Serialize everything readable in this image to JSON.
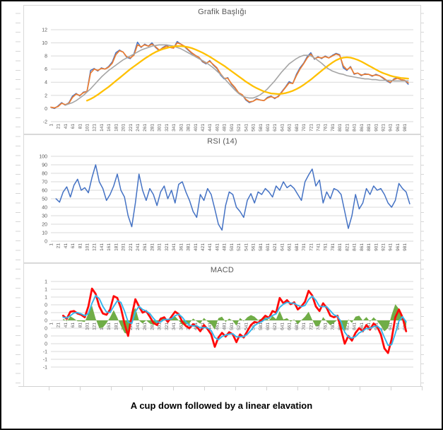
{
  "caption": "A cup down followed by a linear elavation",
  "colors": {
    "price_blue": "#4472C4",
    "price_orange": "#ED7D31",
    "ma_gray": "#A5A5A5",
    "ma_yellow": "#FFC000",
    "macd_red": "#FF0A0A",
    "signal_blue": "#35B5EC",
    "hist_green": "#70AD47",
    "grid": "#D9D9D9",
    "axis_text": "#595959",
    "frame_border": "#0A0A0A"
  },
  "x_axis": {
    "ticks": [
      1,
      21,
      41,
      61,
      81,
      101,
      121,
      141,
      161,
      181,
      201,
      221,
      241,
      261,
      281,
      301,
      321,
      341,
      361,
      381,
      401,
      421,
      441,
      461,
      481,
      501,
      521,
      541,
      561,
      581,
      601,
      621,
      641,
      661,
      681,
      701,
      721,
      741,
      761,
      781,
      801,
      821,
      841,
      861,
      881,
      901,
      921,
      941,
      961,
      981
    ]
  },
  "chart_data": [
    {
      "type": "line",
      "title": "Grafik Başlığı",
      "ylim": [
        -2,
        12
      ],
      "ytick_labels": [
        "12",
        "10",
        "8",
        "6",
        "4",
        "2",
        "0",
        "-2"
      ],
      "grid": true,
      "legend": "none",
      "series": [
        {
          "name": "price",
          "color": "price_blue",
          "x_start": 1,
          "x_step": 10,
          "values": [
            0.2,
            0.0,
            0.4,
            0.9,
            0.5,
            0.9,
            1.9,
            2.3,
            1.9,
            2.5,
            2.6,
            5.8,
            6.1,
            5.7,
            6.2,
            6.0,
            6.4,
            7.1,
            8.5,
            8.9,
            8.6,
            7.8,
            7.6,
            8.3,
            10.1,
            9.3,
            9.8,
            9.5,
            10.0,
            9.3,
            8.8,
            9.3,
            9.6,
            9.3,
            9.2,
            10.2,
            9.8,
            9.4,
            8.9,
            8.4,
            8.1,
            7.8,
            7.1,
            6.8,
            7.3,
            6.6,
            6.1,
            5.1,
            4.5,
            4.7,
            3.7,
            3.1,
            2.3,
            2.1,
            1.3,
            0.9,
            1.1,
            1.5,
            1.3,
            1.2,
            1.7,
            1.9,
            1.5,
            1.9,
            2.6,
            3.3,
            4.1,
            3.8,
            5.2,
            6.2,
            6.9,
            7.9,
            8.5,
            7.5,
            7.9,
            7.6,
            8.0,
            7.7,
            8.1,
            8.4,
            8.2,
            6.2,
            5.8,
            6.4,
            5.2,
            5.4,
            5.0,
            5.3,
            5.2,
            4.9,
            5.2,
            5.0,
            4.6,
            4.2,
            3.9,
            4.5,
            4.7,
            4.4,
            4.3,
            3.7
          ]
        },
        {
          "name": "price-smooth",
          "color": "price_orange",
          "x_start": 1,
          "x_step": 10,
          "values": [
            0.2,
            0.1,
            0.3,
            0.8,
            0.6,
            0.8,
            1.7,
            2.2,
            2.0,
            2.4,
            2.6,
            5.4,
            6.0,
            5.8,
            6.1,
            6.0,
            6.3,
            6.9,
            8.2,
            8.8,
            8.6,
            7.9,
            7.7,
            8.1,
            9.7,
            9.4,
            9.7,
            9.5,
            9.8,
            9.4,
            8.9,
            9.2,
            9.5,
            9.3,
            9.2,
            10.0,
            9.8,
            9.5,
            9.0,
            8.5,
            8.1,
            7.8,
            7.2,
            6.9,
            7.2,
            6.7,
            6.2,
            5.3,
            4.6,
            4.6,
            3.8,
            3.2,
            2.4,
            2.1,
            1.4,
            1.0,
            1.1,
            1.4,
            1.3,
            1.2,
            1.6,
            1.8,
            1.6,
            1.8,
            2.5,
            3.2,
            3.9,
            3.8,
            5.0,
            6.0,
            6.8,
            7.7,
            8.3,
            7.6,
            7.8,
            7.7,
            7.9,
            7.7,
            8.0,
            8.3,
            8.1,
            6.5,
            5.9,
            6.3,
            5.3,
            5.4,
            5.1,
            5.2,
            5.2,
            5.0,
            5.1,
            5.0,
            4.7,
            4.3,
            4.0,
            4.4,
            4.6,
            4.4,
            4.3,
            3.9
          ]
        },
        {
          "name": "ma-mid",
          "color": "ma_gray",
          "x_start": 41,
          "x_step": 10,
          "values": [
            0.5,
            0.7,
            0.9,
            1.2,
            1.6,
            2.0,
            2.5,
            3.0,
            3.6,
            4.2,
            4.8,
            5.3,
            5.8,
            6.2,
            6.6,
            7.0,
            7.4,
            7.7,
            8.0,
            8.3,
            8.6,
            8.9,
            9.1,
            9.3,
            9.5,
            9.6,
            9.7,
            9.7,
            9.7,
            9.6,
            9.5,
            9.3,
            9.1,
            8.8,
            8.5,
            8.2,
            7.9,
            7.6,
            7.3,
            7.0,
            6.6,
            6.2,
            5.7,
            5.2,
            4.6,
            4.0,
            3.4,
            2.8,
            2.3,
            1.9,
            1.7,
            1.6,
            1.6,
            1.8,
            2.1,
            2.5,
            3.0,
            3.6,
            4.2,
            4.9,
            5.6,
            6.2,
            6.8,
            7.2,
            7.6,
            7.9,
            8.1,
            8.1,
            8.0,
            7.7,
            7.3,
            6.9,
            6.4,
            6.0,
            5.7,
            5.5,
            5.3,
            5.2,
            5.0,
            4.9,
            4.8,
            4.7,
            4.6,
            4.5,
            4.5,
            4.4,
            4.4,
            4.3,
            4.3,
            4.3,
            4.3,
            4.2,
            4.2,
            4.2,
            4.2,
            4.2
          ]
        },
        {
          "name": "ma-long",
          "color": "ma_yellow",
          "x_start": 101,
          "x_step": 10,
          "values": [
            1.2,
            1.45,
            1.75,
            2.1,
            2.5,
            2.9,
            3.3,
            3.75,
            4.2,
            4.65,
            5.1,
            5.55,
            6.0,
            6.4,
            6.8,
            7.2,
            7.6,
            7.95,
            8.3,
            8.6,
            8.85,
            9.05,
            9.2,
            9.35,
            9.45,
            9.5,
            9.5,
            9.45,
            9.35,
            9.2,
            9.0,
            8.75,
            8.5,
            8.2,
            7.9,
            7.55,
            7.2,
            6.85,
            6.5,
            6.1,
            5.7,
            5.3,
            4.9,
            4.5,
            4.1,
            3.75,
            3.4,
            3.1,
            2.85,
            2.6,
            2.45,
            2.3,
            2.25,
            2.2,
            2.25,
            2.35,
            2.5,
            2.7,
            2.95,
            3.25,
            3.6,
            4.0,
            4.4,
            4.85,
            5.3,
            5.75,
            6.2,
            6.6,
            7.0,
            7.35,
            7.6,
            7.75,
            7.8,
            7.75,
            7.6,
            7.4,
            7.15,
            6.85,
            6.55,
            6.25,
            5.95,
            5.65,
            5.4,
            5.2,
            5.0,
            4.85,
            4.75,
            4.65,
            4.6,
            4.55
          ]
        }
      ]
    },
    {
      "type": "line",
      "title": "RSI (14)",
      "ylim": [
        0,
        100
      ],
      "ytick_labels": [
        "100",
        "90",
        "80",
        "70",
        "60",
        "50",
        "40",
        "30",
        "20",
        "10",
        "0"
      ],
      "grid": true,
      "legend": "none",
      "series": [
        {
          "name": "rsi",
          "color": "price_blue",
          "x_start": 15,
          "x_step": 10,
          "values": [
            50,
            46,
            58,
            64,
            52,
            66,
            73,
            60,
            63,
            57,
            75,
            90,
            70,
            62,
            48,
            55,
            65,
            79,
            60,
            52,
            30,
            17,
            45,
            79,
            60,
            48,
            62,
            55,
            42,
            58,
            65,
            50,
            60,
            45,
            67,
            70,
            58,
            48,
            35,
            28,
            55,
            48,
            62,
            55,
            38,
            20,
            13,
            42,
            58,
            55,
            40,
            35,
            28,
            48,
            56,
            45,
            58,
            55,
            62,
            58,
            52,
            65,
            60,
            70,
            63,
            66,
            62,
            55,
            48,
            70,
            78,
            85,
            65,
            72,
            45,
            58,
            50,
            62,
            60,
            55,
            35,
            15,
            30,
            55,
            38,
            45,
            62,
            55,
            65,
            60,
            62,
            55,
            45,
            40,
            48,
            68,
            62,
            58,
            44
          ]
        }
      ]
    },
    {
      "type": "line",
      "title": "MACD",
      "ylim": [
        -1.5,
        1.25
      ],
      "ytick_labels": [
        "1",
        "1",
        "1",
        "0",
        "0",
        "0",
        "0",
        "0",
        "0",
        "-1",
        "-1",
        "-1"
      ],
      "grid": true,
      "legend": "none",
      "x_labels_at_zero_line": true,
      "series": [
        {
          "name": "macd-histogram",
          "kind": "area",
          "color": "hist_green",
          "x_start": 35,
          "x_step": 10,
          "values": [
            0.05,
            -0.03,
            0.13,
            0.06,
            -0.03,
            -0.03,
            -0.05,
            0.23,
            0.47,
            0.05,
            -0.25,
            -0.23,
            -0.09,
            0.1,
            0.33,
            0.09,
            -0.18,
            -0.4,
            -0.45,
            0.25,
            0.4,
            0.0,
            -0.1,
            0.0,
            -0.1,
            -0.15,
            -0.09,
            0.1,
            0.07,
            -0.08,
            0.07,
            0.13,
            0.0,
            -0.15,
            -0.13,
            -0.09,
            0.06,
            -0.03,
            -0.11,
            0.08,
            -0.04,
            -0.12,
            -0.3,
            0.07,
            0.12,
            -0.05,
            0.06,
            -0.02,
            -0.17,
            0.08,
            -0.03,
            0.1,
            0.17,
            0.12,
            0.01,
            0.06,
            0.11,
            0.0,
            0.14,
            0.04,
            0.3,
            0.03,
            0.07,
            -0.04,
            0.03,
            -0.13,
            0.01,
            0.12,
            0.28,
            0.02,
            -0.2,
            -0.15,
            0.11,
            -0.04,
            -0.16,
            -0.08,
            0.02,
            -0.25,
            -0.37,
            0.03,
            -0.08,
            0.12,
            0.15,
            -0.01,
            0.11,
            -0.04,
            0.1,
            -0.02,
            -0.17,
            -0.35,
            -0.25,
            0.18,
            0.52,
            0.37,
            -0.02,
            -0.3
          ]
        },
        {
          "name": "macd",
          "kind": "line",
          "color": "macd_red",
          "x_start": 35,
          "x_step": 10,
          "values": [
            0.15,
            0.05,
            0.28,
            0.3,
            0.22,
            0.18,
            0.1,
            0.45,
            1.02,
            0.85,
            0.45,
            0.22,
            0.18,
            0.35,
            0.78,
            0.72,
            0.4,
            -0.1,
            -0.5,
            0.15,
            0.68,
            0.45,
            0.25,
            0.3,
            0.12,
            -0.08,
            -0.15,
            0.05,
            0.1,
            -0.05,
            0.12,
            0.28,
            0.2,
            -0.05,
            -0.18,
            -0.25,
            -0.12,
            -0.2,
            -0.35,
            -0.15,
            -0.28,
            -0.45,
            -0.85,
            -0.55,
            -0.4,
            -0.52,
            -0.38,
            -0.45,
            -0.7,
            -0.45,
            -0.55,
            -0.35,
            -0.15,
            -0.05,
            -0.08,
            0.02,
            0.15,
            0.08,
            0.3,
            0.25,
            0.72,
            0.55,
            0.65,
            0.52,
            0.58,
            0.35,
            0.45,
            0.6,
            0.95,
            0.8,
            0.45,
            0.3,
            0.55,
            0.4,
            0.15,
            0.1,
            0.15,
            -0.3,
            -0.75,
            -0.5,
            -0.65,
            -0.4,
            -0.25,
            -0.35,
            -0.15,
            -0.3,
            -0.1,
            -0.2,
            -0.45,
            -0.9,
            -1.05,
            -0.6,
            0.1,
            0.35,
            0.1,
            -0.35
          ]
        },
        {
          "name": "signal",
          "kind": "line",
          "color": "signal_blue",
          "x_start": 35,
          "x_step": 10,
          "values": [
            0.1,
            0.08,
            0.15,
            0.24,
            0.25,
            0.21,
            0.15,
            0.22,
            0.55,
            0.8,
            0.7,
            0.45,
            0.27,
            0.25,
            0.45,
            0.63,
            0.58,
            0.3,
            -0.05,
            -0.1,
            0.28,
            0.45,
            0.35,
            0.3,
            0.22,
            0.07,
            -0.06,
            -0.05,
            0.03,
            0.03,
            0.05,
            0.15,
            0.2,
            0.1,
            -0.05,
            -0.16,
            -0.18,
            -0.17,
            -0.24,
            -0.23,
            -0.24,
            -0.33,
            -0.55,
            -0.62,
            -0.52,
            -0.47,
            -0.44,
            -0.43,
            -0.53,
            -0.53,
            -0.52,
            -0.45,
            -0.32,
            -0.17,
            -0.09,
            -0.04,
            0.04,
            0.08,
            0.16,
            0.21,
            0.42,
            0.52,
            0.58,
            0.56,
            0.55,
            0.48,
            0.44,
            0.48,
            0.67,
            0.78,
            0.65,
            0.45,
            0.44,
            0.44,
            0.31,
            0.18,
            0.13,
            -0.05,
            -0.38,
            -0.53,
            -0.57,
            -0.52,
            -0.4,
            -0.34,
            -0.26,
            -0.26,
            -0.2,
            -0.18,
            -0.28,
            -0.55,
            -0.8,
            -0.78,
            -0.42,
            -0.02,
            0.12,
            -0.05
          ]
        }
      ]
    }
  ]
}
